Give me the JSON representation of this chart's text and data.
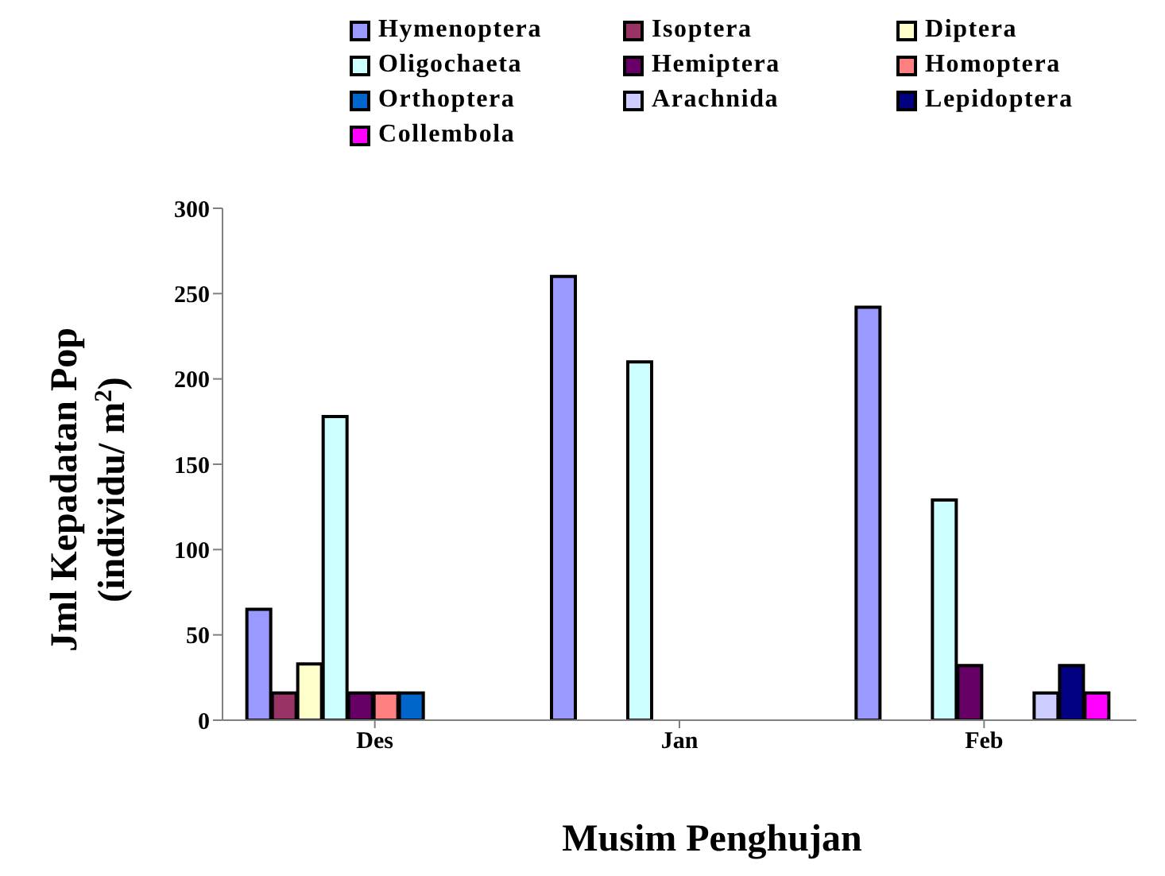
{
  "chart_data": {
    "type": "bar",
    "xlabel": "Musim Penghujan",
    "ylabel": "Jml Kepadatan Pop\n(individu/ m$^{2}$)",
    "categories": [
      "Des",
      "Jan",
      "Feb"
    ],
    "series": [
      {
        "name": "Hymenoptera",
        "color": "#9999ff",
        "values": [
          65,
          260,
          242
        ]
      },
      {
        "name": "Isoptera",
        "color": "#993366",
        "values": [
          16,
          0,
          0
        ]
      },
      {
        "name": "Diptera",
        "color": "#ffffcc",
        "values": [
          33,
          0,
          0
        ]
      },
      {
        "name": "Oligochaeta",
        "color": "#ccffff",
        "values": [
          178,
          210,
          129
        ]
      },
      {
        "name": "Hemiptera",
        "color": "#660066",
        "values": [
          16,
          0,
          32
        ]
      },
      {
        "name": "Homoptera",
        "color": "#ff8080",
        "values": [
          16,
          0,
          0
        ]
      },
      {
        "name": "Orthoptera",
        "color": "#0066cc",
        "values": [
          16,
          0,
          0
        ]
      },
      {
        "name": "Arachnida",
        "color": "#ccccff",
        "values": [
          0,
          0,
          16
        ]
      },
      {
        "name": "Lepidoptera",
        "color": "#000080",
        "values": [
          0,
          0,
          32
        ]
      },
      {
        "name": "Collembola",
        "color": "#ff00ff",
        "values": [
          0,
          0,
          16
        ]
      }
    ],
    "ylim": [
      0,
      300
    ],
    "yticks": [
      0,
      50,
      100,
      150,
      200,
      250,
      300
    ],
    "grid": false,
    "legend": "top right"
  }
}
